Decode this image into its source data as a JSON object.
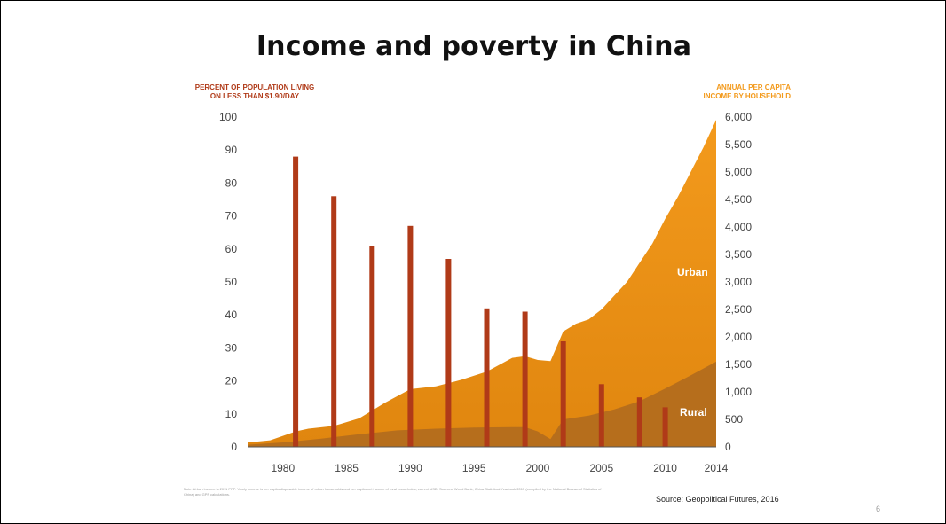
{
  "slide": {
    "title": "Income and poverty in China",
    "footnote": "Note: Urban income is 2011 PPP. Yearly income is per capita disposable income of urban households and per capita net income of rural households, current USD. Sources: World Bank, China Statistical Yearbook 2015 (compiled by the National Bureau of Statistics of China) and GPF calculations.",
    "source": "Source: Geopolitical Futures, 2016",
    "page_number": "6"
  },
  "colors": {
    "urban": "#f39a1c",
    "urban_lower": "#e0860f",
    "rural": "#b66e1c",
    "bars": "#b03a18",
    "left_axis_title": "#b03a18",
    "right_axis_title": "#f39a1c"
  },
  "chart_data": {
    "type": "bar+area",
    "title": "Income and poverty in China",
    "left_axis": {
      "label_line1": "PERCENT OF POPULATION LIVING",
      "label_line2": "ON LESS THAN $1.90/DAY",
      "range": [
        0,
        100
      ],
      "ticks": [
        "100",
        "90",
        "80",
        "70",
        "60",
        "50",
        "40",
        "30",
        "20",
        "10",
        "0"
      ]
    },
    "right_axis": {
      "label_line1": "ANNUAL PER CAPITA",
      "label_line2": "INCOME BY HOUSEHOLD",
      "range": [
        0,
        6000
      ],
      "ticks": [
        "6,000",
        "5,500",
        "5,000",
        "4,500",
        "4,000",
        "3,500",
        "3,000",
        "2,500",
        "2,000",
        "1,500",
        "1,000",
        "500",
        "0"
      ]
    },
    "x_axis": {
      "range": [
        1977.3,
        2014
      ],
      "ticks": [
        "1980",
        "1985",
        "1990",
        "1995",
        "2000",
        "2005",
        "2010",
        "2014"
      ]
    },
    "bars": {
      "axis": "left",
      "x": [
        1981,
        1984,
        1987,
        1990,
        1993,
        1996,
        1999,
        2002,
        2005,
        2008,
        2010
      ],
      "values": [
        88,
        76,
        61,
        67,
        57,
        42,
        41,
        32,
        19,
        15,
        12
      ]
    },
    "areas": [
      {
        "name": "Urban",
        "axis": "right",
        "x": [
          1977.3,
          1979,
          1980,
          1981,
          1982,
          1984,
          1986,
          1988,
          1990,
          1992,
          1994,
          1996,
          1998,
          1999,
          2000,
          2001,
          2002,
          2003,
          2004,
          2005,
          2006,
          2007,
          2008,
          2009,
          2010,
          2011,
          2012,
          2013,
          2014
        ],
        "values": [
          80,
          120,
          200,
          280,
          330,
          380,
          520,
          800,
          1050,
          1100,
          1220,
          1370,
          1620,
          1650,
          1580,
          1560,
          2100,
          2240,
          2320,
          2500,
          2750,
          3000,
          3350,
          3700,
          4150,
          4550,
          5000,
          5450,
          5950
        ]
      },
      {
        "name": "Rural",
        "axis": "right",
        "x": [
          1977.3,
          1980,
          1983,
          1986,
          1989,
          1992,
          1995,
          1998,
          1999,
          2000,
          2001,
          2002,
          2004,
          2006,
          2008,
          2010,
          2012,
          2014
        ],
        "values": [
          40,
          80,
          150,
          230,
          300,
          330,
          350,
          360,
          360,
          280,
          140,
          500,
          570,
          680,
          830,
          1060,
          1300,
          1550
        ]
      }
    ]
  }
}
